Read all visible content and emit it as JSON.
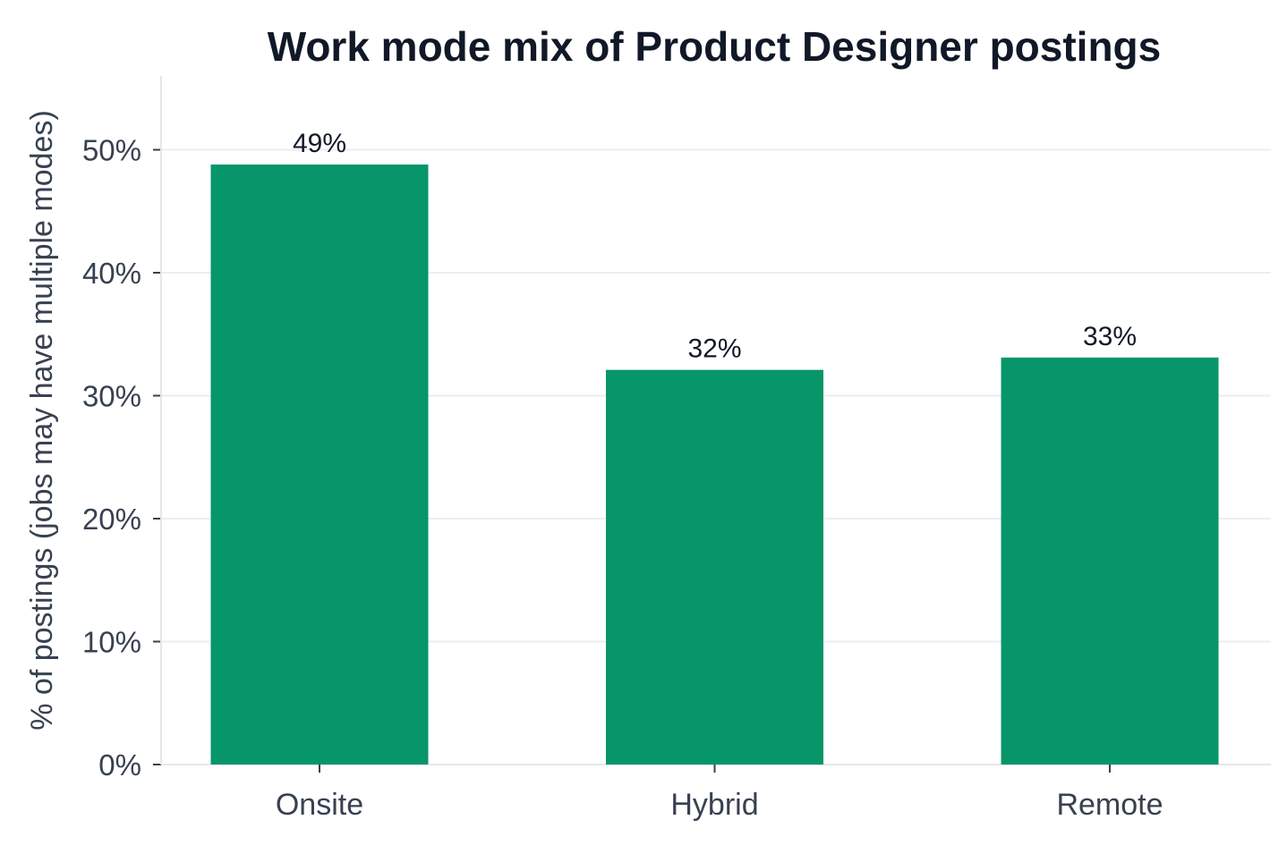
{
  "chart_data": {
    "type": "bar",
    "title": "Work mode mix of Product Designer postings",
    "xlabel": "",
    "ylabel": "% of postings (jobs may have multiple modes)",
    "categories": [
      "Onsite",
      "Hybrid",
      "Remote"
    ],
    "values": [
      48.8,
      32.1,
      33.1
    ],
    "data_labels": [
      "49%",
      "32%",
      "33%"
    ],
    "ylim": [
      0,
      56
    ],
    "yticks": [
      0,
      10,
      20,
      30,
      40,
      50
    ],
    "ytick_labels": [
      "0%",
      "10%",
      "20%",
      "30%",
      "40%",
      "50%"
    ],
    "grid": true,
    "legend": "none",
    "colors": {
      "bar": "#079669",
      "title": "#111827",
      "axis_text": "#374151",
      "data_label": "#111827",
      "grid": "#eceef1",
      "axis_line": "#e5e7eb"
    }
  }
}
